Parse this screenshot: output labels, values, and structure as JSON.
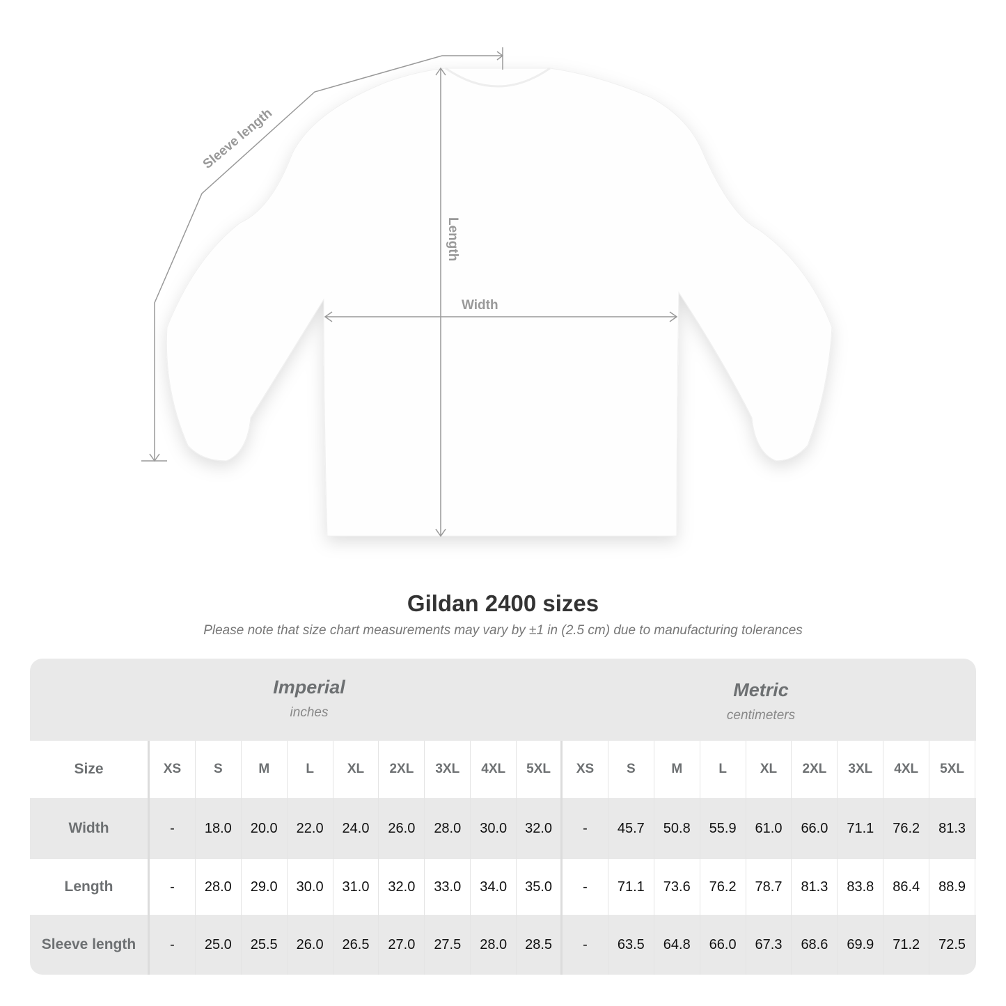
{
  "diagram_labels": {
    "sleeve": "Sleeve length",
    "length": "Length",
    "width": "Width"
  },
  "title": "Gildan 2400 sizes",
  "note": "Please note that size chart measurements may vary by ±1 in (2.5 cm) due to manufacturing tolerances",
  "imperial": {
    "name": "Imperial",
    "unit": "inches"
  },
  "metric": {
    "name": "Metric",
    "unit": "centimeters"
  },
  "size_label": "Size",
  "sizes": [
    "XS",
    "S",
    "M",
    "L",
    "XL",
    "2XL",
    "3XL",
    "4XL",
    "5XL",
    "XS",
    "S",
    "M",
    "L",
    "XL",
    "2XL",
    "3XL",
    "4XL",
    "5XL"
  ],
  "rows": [
    {
      "label": "Width",
      "values": [
        "-",
        "18.0",
        "20.0",
        "22.0",
        "24.0",
        "26.0",
        "28.0",
        "30.0",
        "32.0",
        "-",
        "45.7",
        "50.8",
        "55.9",
        "61.0",
        "66.0",
        "71.1",
        "76.2",
        "81.3"
      ]
    },
    {
      "label": "Length",
      "values": [
        "-",
        "28.0",
        "29.0",
        "30.0",
        "31.0",
        "32.0",
        "33.0",
        "34.0",
        "35.0",
        "-",
        "71.1",
        "73.6",
        "76.2",
        "78.7",
        "81.3",
        "83.8",
        "86.4",
        "88.9"
      ]
    },
    {
      "label": "Sleeve length",
      "values": [
        "-",
        "25.0",
        "25.5",
        "26.0",
        "26.5",
        "27.0",
        "27.5",
        "28.0",
        "28.5",
        "-",
        "63.5",
        "64.8",
        "66.0",
        "67.3",
        "68.6",
        "69.9",
        "71.2",
        "72.5"
      ]
    }
  ],
  "colors": {
    "header_bg": "#e9e9e9",
    "label_text": "#6d7072",
    "measure_line": "#999999"
  }
}
